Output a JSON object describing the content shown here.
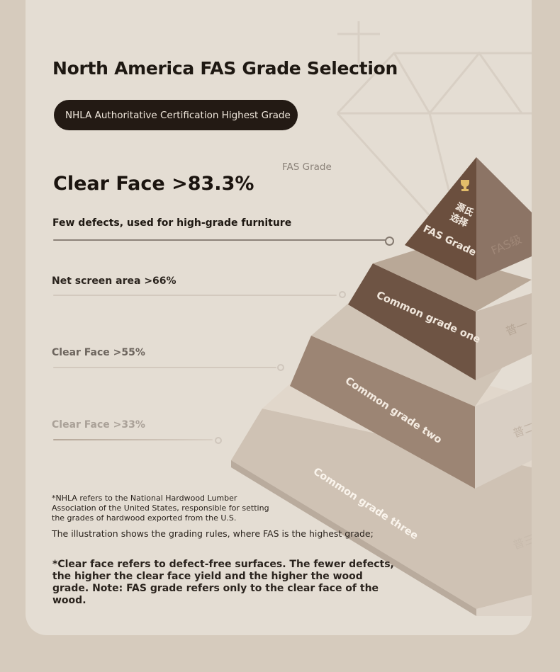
{
  "title": "North America FAS Grade Selection",
  "badge": "NHLA Authoritative Certification Highest Grade",
  "fas_caption": "FAS Grade",
  "rows": [
    {
      "label": "Clear Face >83.3%",
      "sub": "Few defects, used for high-grade furniture"
    },
    {
      "label": "Net screen area >66%"
    },
    {
      "label": "Clear Face >55%"
    },
    {
      "label": "Clear Face >33%"
    }
  ],
  "pyramid": {
    "tier1": "FAS Grade",
    "tier1_cn": "源氏选择",
    "tier1_side": "FAS级",
    "tier2": "Common grade one",
    "tier2_side": "普一",
    "tier3": "Common grade two",
    "tier3_side": "普二",
    "tier4": "Common grade three",
    "tier4_side": "普三"
  },
  "notes": {
    "nhla": "*NHLA refers to the National Hardwood Lumber Association of the United States, responsible for setting the grades of hardwood exported from the U.S.",
    "illustration": "The illustration shows the grading rules, where FAS is the highest grade;",
    "clear_face": "*Clear face refers to defect-free surfaces. The fewer defects, the higher the clear face yield and the higher the wood grade. Note: FAS grade refers only to the clear face of the wood."
  },
  "colors": {
    "tier1": "#6b4f3e",
    "tier2": "#806554",
    "tier3": "#a08a78",
    "tier4": "#c4b5a6",
    "badge_bg": "#231a14"
  }
}
